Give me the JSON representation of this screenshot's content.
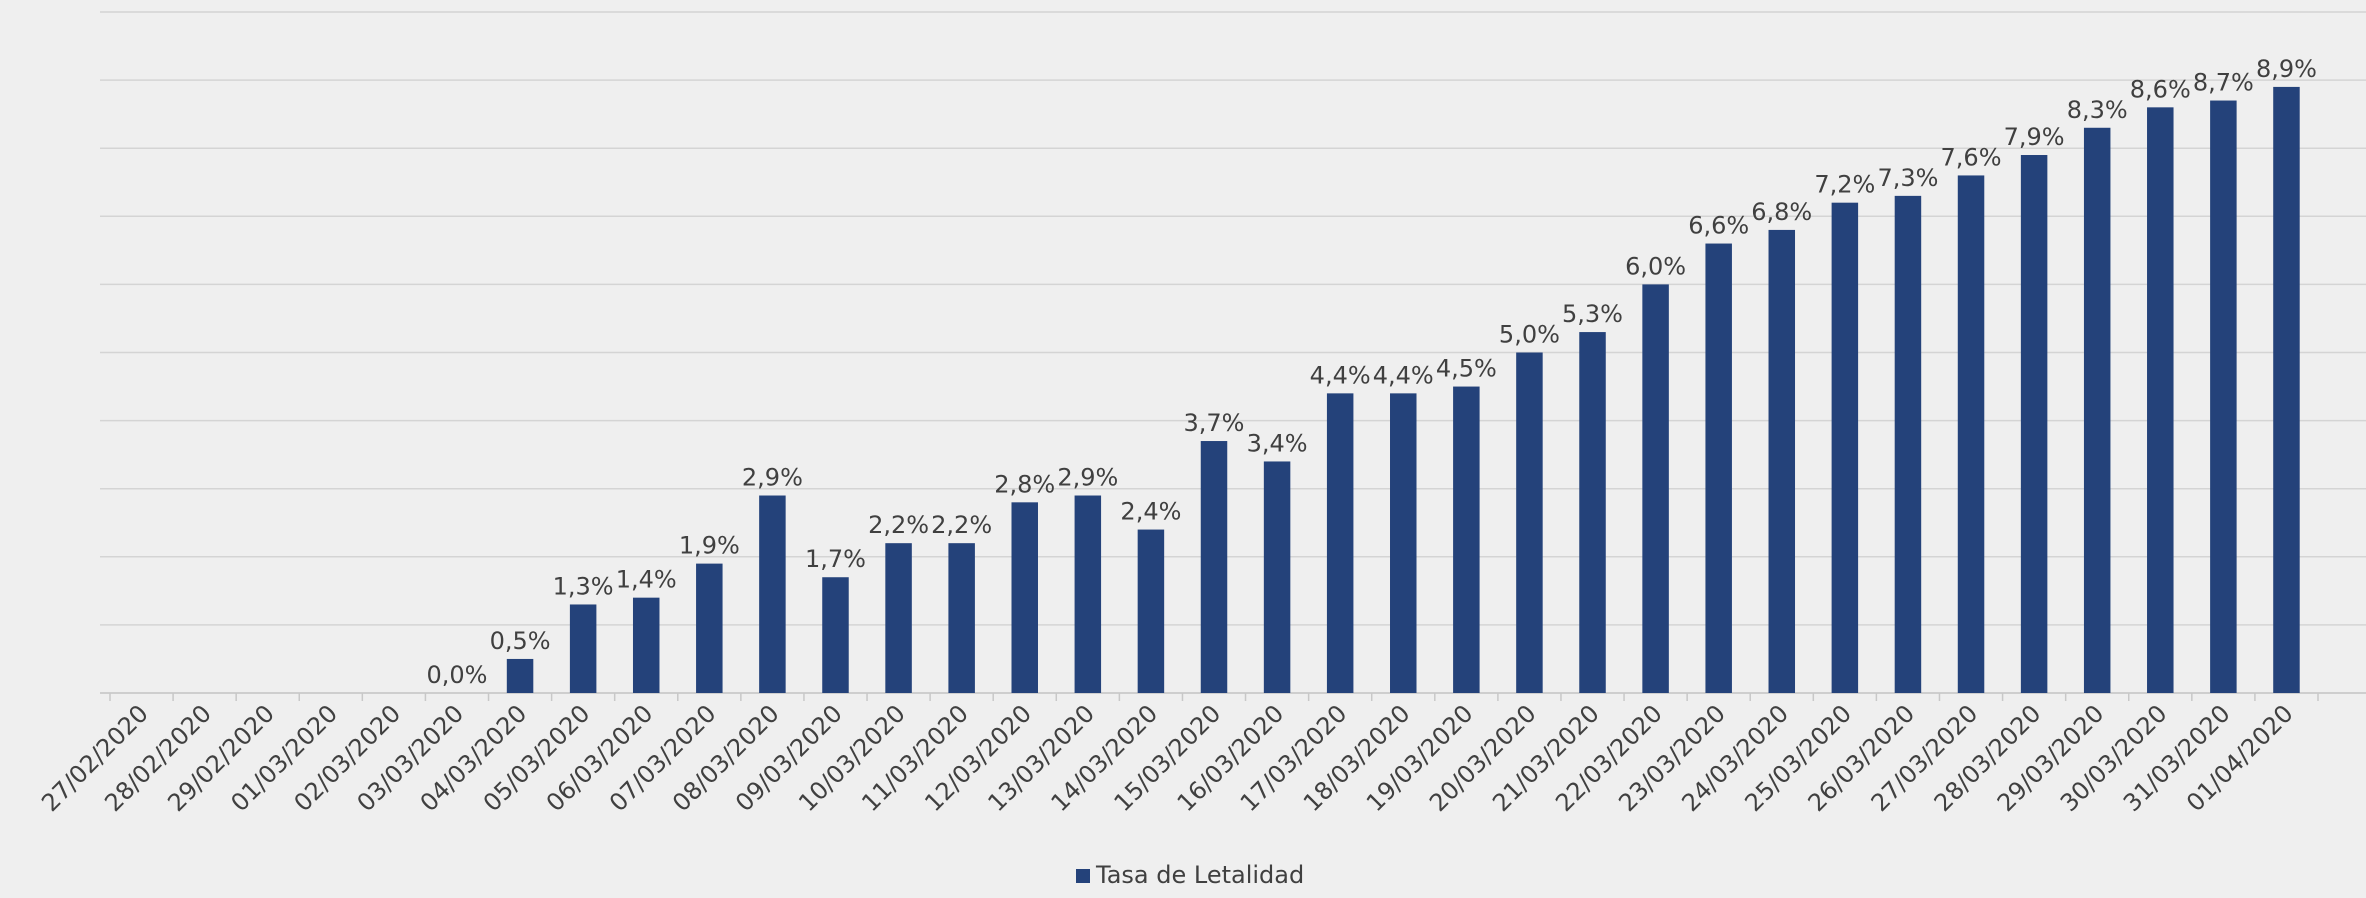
{
  "chart_data": {
    "type": "bar",
    "categories": [
      "27/02/2020",
      "28/02/2020",
      "29/02/2020",
      "01/03/2020",
      "02/03/2020",
      "03/03/2020",
      "04/03/2020",
      "05/03/2020",
      "06/03/2020",
      "07/03/2020",
      "08/03/2020",
      "09/03/2020",
      "10/03/2020",
      "11/03/2020",
      "12/03/2020",
      "13/03/2020",
      "14/03/2020",
      "15/03/2020",
      "16/03/2020",
      "17/03/2020",
      "18/03/2020",
      "19/03/2020",
      "20/03/2020",
      "21/03/2020",
      "22/03/2020",
      "23/03/2020",
      "24/03/2020",
      "25/03/2020",
      "26/03/2020",
      "27/03/2020",
      "28/03/2020",
      "29/03/2020",
      "30/03/2020",
      "31/03/2020",
      "01/04/2020"
    ],
    "series": [
      {
        "name": "Tasa de Letalidad",
        "color": "#24427a",
        "values": [
          null,
          null,
          null,
          null,
          null,
          0.0,
          0.5,
          1.3,
          1.4,
          1.9,
          2.9,
          1.7,
          2.2,
          2.2,
          2.8,
          2.9,
          2.4,
          3.7,
          3.4,
          4.4,
          4.4,
          4.5,
          5.0,
          5.3,
          6.0,
          6.6,
          6.8,
          7.2,
          7.3,
          7.6,
          7.9,
          8.3,
          8.6,
          8.7,
          8.9
        ],
        "value_labels": [
          null,
          null,
          null,
          null,
          null,
          "0,0%",
          "0,5%",
          "1,3%",
          "1,4%",
          "1,9%",
          "2,9%",
          "1,7%",
          "2,2%",
          "2,2%",
          "2,8%",
          "2,9%",
          "2,4%",
          "3,7%",
          "3,4%",
          "4,4%",
          "4,4%",
          "4,5%",
          "5,0%",
          "5,3%",
          "6,0%",
          "6,6%",
          "6,8%",
          "7,2%",
          "7,3%",
          "7,6%",
          "7,9%",
          "8,3%",
          "8,6%",
          "8,7%",
          "8,9%"
        ]
      }
    ],
    "ylim": [
      0,
      10
    ],
    "yticks": [
      0,
      1,
      2,
      3,
      4,
      5,
      6,
      7,
      8,
      9,
      10
    ],
    "grid": true,
    "legend": "bottom"
  }
}
